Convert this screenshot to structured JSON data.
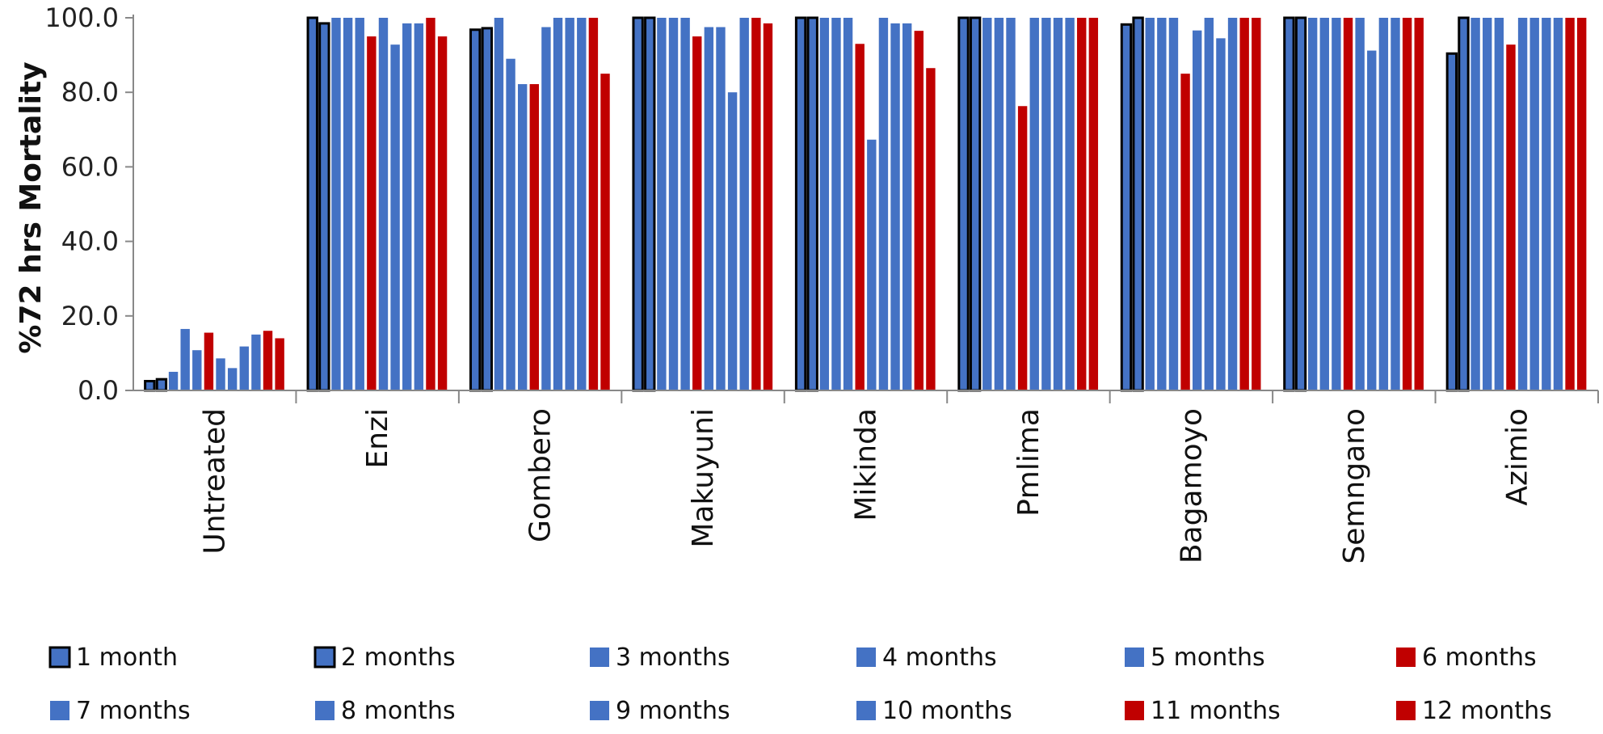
{
  "chart_data": {
    "type": "bar",
    "ylabel": "%72 hrs Mortality",
    "ylim": [
      0,
      100
    ],
    "yticks": [
      "0.0",
      "20.0",
      "40.0",
      "60.0",
      "80.0",
      "100.0"
    ],
    "categories": [
      "Untreated",
      "Enzi",
      "Gombero",
      "Makuyuni",
      "Mikinda",
      "Pmlima",
      "Bagamoyo",
      "Semngano",
      "Azimio"
    ],
    "colors": {
      "blue": "#4472C4",
      "red": "#C00000",
      "outline": "#000000"
    },
    "legend_position": "bottom",
    "series": [
      {
        "name": "1 month",
        "color": "blue",
        "outlined": true,
        "values": [
          2.5,
          100,
          96.8,
          100,
          100,
          100,
          98.2,
          100,
          90.4
        ]
      },
      {
        "name": "2 months",
        "color": "blue",
        "outlined": true,
        "values": [
          3.0,
          98.5,
          97.2,
          100,
          100,
          100,
          100,
          100,
          100
        ]
      },
      {
        "name": "3 months",
        "color": "blue",
        "outlined": false,
        "values": [
          5.0,
          100,
          100,
          100,
          100,
          100,
          100,
          100,
          100
        ]
      },
      {
        "name": "4 months",
        "color": "blue",
        "outlined": false,
        "values": [
          16.5,
          100,
          89.0,
          100,
          100,
          100,
          100,
          100,
          100
        ]
      },
      {
        "name": "5 months",
        "color": "blue",
        "outlined": false,
        "values": [
          10.8,
          100,
          82.2,
          100,
          100,
          100,
          100,
          100,
          100
        ]
      },
      {
        "name": "6 months",
        "color": "red",
        "outlined": false,
        "values": [
          15.5,
          95.0,
          82.2,
          95.0,
          93.0,
          76.3,
          85.0,
          100,
          92.8
        ]
      },
      {
        "name": "7 months",
        "color": "blue",
        "outlined": false,
        "values": [
          8.6,
          100,
          97.5,
          97.5,
          67.3,
          100,
          96.6,
          100,
          100
        ]
      },
      {
        "name": "8 months",
        "color": "blue",
        "outlined": false,
        "values": [
          6.0,
          92.8,
          100,
          97.5,
          100,
          100,
          100,
          91.2,
          100
        ]
      },
      {
        "name": "9 months",
        "color": "blue",
        "outlined": false,
        "values": [
          11.8,
          98.5,
          100,
          80.0,
          98.5,
          100,
          94.5,
          100,
          100
        ]
      },
      {
        "name": "10 months",
        "color": "blue",
        "outlined": false,
        "values": [
          15.0,
          98.5,
          100,
          100,
          98.5,
          100,
          100,
          100,
          100
        ]
      },
      {
        "name": "11 months",
        "color": "red",
        "outlined": false,
        "values": [
          16.0,
          100,
          100,
          100,
          96.5,
          100,
          100,
          100,
          100
        ]
      },
      {
        "name": "12 months",
        "color": "red",
        "outlined": false,
        "values": [
          14.0,
          95.0,
          85.0,
          98.5,
          86.5,
          100,
          100,
          100,
          100
        ]
      }
    ]
  }
}
